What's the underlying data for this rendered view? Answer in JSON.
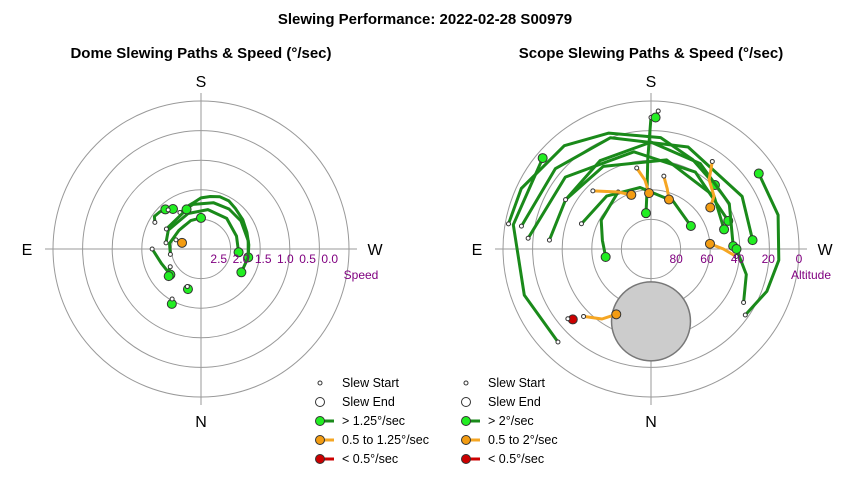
{
  "title": "Slewing Performance: 2022-02-28 S00979",
  "colors": {
    "fast": "#1a8a1a",
    "fast_marker": "#22ee22",
    "medium": "#f5a623",
    "medium_marker": "#f39c12",
    "slow": "#cc0000",
    "grid": "#999999",
    "axis_tick": "#800080",
    "obscured": "#cccccc"
  },
  "chart_data": [
    {
      "type": "polar-paths",
      "title": "Dome Slewing Paths & Speed (°/sec)",
      "directions": {
        "top": "S",
        "bottom": "N",
        "left": "E",
        "right": "W"
      },
      "radial_axis_label": "Speed",
      "radial_ticks": [
        "2.5",
        "2.0",
        "1.5",
        "1.0",
        "0.5",
        "0.0"
      ],
      "radial_range": [
        0.0,
        2.5
      ],
      "radial_reversed": true,
      "legend": [
        {
          "label": "Slew Start",
          "marker": "start"
        },
        {
          "label": "Slew End",
          "marker": "end"
        },
        {
          "label": "> 1.25°/sec",
          "marker": "fast"
        },
        {
          "label": "0.5 to 1.25°/sec",
          "marker": "medium"
        },
        {
          "label": "< 0.5°/sec",
          "marker": "slow"
        }
      ],
      "paths": [
        {
          "speed_class": "medium",
          "points": [
            [
              -70,
              2.3
            ],
            [
              -72,
              2.45
            ]
          ]
        },
        {
          "speed_class": "fast",
          "points": [
            [
              -60,
              1.7
            ],
            [
              -55,
              1.62
            ],
            [
              -48,
              1.65
            ],
            [
              -42,
              1.7
            ]
          ]
        },
        {
          "speed_class": "fast",
          "points": [
            [
              -40,
              1.75
            ],
            [
              -35,
              1.8
            ]
          ]
        },
        {
          "speed_class": "fast",
          "points": [
            [
              -20,
              1.9
            ],
            [
              -10,
              1.85
            ],
            [
              0,
              1.75
            ],
            [
              10,
              1.7
            ],
            [
              20,
              1.65
            ],
            [
              30,
              1.65
            ],
            [
              40,
              1.7
            ],
            [
              55,
              1.75
            ],
            [
              70,
              1.8
            ],
            [
              85,
              1.82
            ],
            [
              100,
              1.82
            ]
          ]
        },
        {
          "speed_class": "fast",
          "points": [
            [
              -30,
              1.95
            ],
            [
              -10,
              1.88
            ],
            [
              15,
              1.82
            ],
            [
              35,
              1.8
            ],
            [
              55,
              1.8
            ],
            [
              80,
              1.82
            ],
            [
              100,
              1.82
            ],
            [
              120,
              1.85
            ]
          ]
        },
        {
          "speed_class": "fast",
          "points": [
            [
              -80,
              2.1
            ],
            [
              -60,
              2.05
            ],
            [
              -20,
              2.05
            ],
            [
              10,
              2.0
            ],
            [
              40,
              2.0
            ],
            [
              70,
              2.05
            ],
            [
              95,
              2.05
            ]
          ]
        },
        {
          "speed_class": "fast",
          "points": [
            [
              -100,
              2.2
            ],
            [
              -80,
              2.18
            ],
            [
              -50,
              2.25
            ],
            [
              -20,
              2.22
            ],
            [
              0,
              2.2
            ]
          ]
        },
        {
          "speed_class": "fast",
          "points": [
            [
              -90,
              1.8
            ],
            [
              -110,
              1.95
            ],
            [
              -130,
              2.0
            ]
          ]
        },
        {
          "speed_class": "fast",
          "points": [
            [
              -120,
              2.1
            ],
            [
              -125,
              2.0
            ],
            [
              -130,
              1.95
            ]
          ]
        },
        {
          "speed_class": "fast",
          "points": [
            [
              -150,
              1.6
            ],
            [
              -152,
              1.5
            ]
          ]
        },
        {
          "speed_class": "fast",
          "points": [
            [
              -160,
              2.0
            ],
            [
              -162,
              1.95
            ]
          ]
        },
        {
          "speed_class": "fast",
          "points": [
            [
              -60,
              2.0
            ],
            [
              -20,
              1.95
            ]
          ]
        }
      ]
    },
    {
      "type": "polar-paths",
      "title": "Scope Slewing Paths & Speed (°/sec)",
      "directions": {
        "top": "S",
        "bottom": "N",
        "left": "E",
        "right": "W"
      },
      "radial_axis_label": "Altitude",
      "radial_ticks": [
        "80",
        "60",
        "40",
        "20",
        "0"
      ],
      "radial_range": [
        90,
        0
      ],
      "radial_reversed": true,
      "legend": [
        {
          "label": "Slew Start",
          "marker": "start"
        },
        {
          "label": "Slew End",
          "marker": "end"
        },
        {
          "label": "> 2°/sec",
          "marker": "fast"
        },
        {
          "label": "0.5 to 2°/sec",
          "marker": "medium"
        },
        {
          "label": "< 0.5°/sec",
          "marker": "slow"
        }
      ],
      "obscured_region": {
        "center_azimuth": 0,
        "center_altitude": 46,
        "radius_deg": 24
      },
      "paths": [
        {
          "speed_class": "fast",
          "points": [
            [
              180,
              10
            ],
            [
              178,
              35
            ],
            [
              176,
              55
            ],
            [
              172,
              68
            ]
          ]
        },
        {
          "speed_class": "fast",
          "points": [
            [
              183,
              6
            ],
            [
              182,
              10
            ]
          ]
        },
        {
          "speed_class": "fast",
          "points": [
            [
              100,
              2
            ],
            [
              115,
              3
            ],
            [
              140,
              8
            ],
            [
              160,
              15
            ],
            [
              185,
              22
            ],
            [
              205,
              30
            ],
            [
              225,
              35
            ]
          ]
        },
        {
          "speed_class": "fast",
          "points": [
            [
              100,
              10
            ],
            [
              130,
              14
            ],
            [
              160,
              18
            ],
            [
              200,
              24
            ],
            [
              240,
              26
            ],
            [
              265,
              28
            ]
          ]
        },
        {
          "speed_class": "fast",
          "points": [
            [
              95,
              15
            ],
            [
              130,
              22
            ],
            [
              170,
              30
            ],
            [
              210,
              36
            ],
            [
              250,
              40
            ]
          ]
        },
        {
          "speed_class": "fast",
          "points": [
            [
              95,
              28
            ],
            [
              120,
              30
            ],
            [
              150,
              32
            ],
            [
              190,
              35
            ],
            [
              230,
              40
            ],
            [
              255,
              44
            ]
          ]
        },
        {
          "speed_class": "fast",
          "points": [
            [
              110,
              45
            ],
            [
              140,
              48
            ],
            [
              170,
              52
            ],
            [
              205,
              58
            ],
            [
              240,
              62
            ]
          ]
        },
        {
          "speed_class": "fast",
          "points": [
            [
              120,
              30
            ],
            [
              150,
              28
            ],
            [
              180,
              25
            ],
            [
              210,
              30
            ],
            [
              240,
              35
            ],
            [
              268,
              40
            ]
          ]
        },
        {
          "speed_class": "fast",
          "points": [
            [
              45,
              10
            ],
            [
              70,
              8
            ],
            [
              100,
              5
            ],
            [
              130,
              4
            ]
          ]
        },
        {
          "speed_class": "fast",
          "points": [
            [
              300,
              25
            ],
            [
              285,
              30
            ],
            [
              270,
              38
            ]
          ]
        },
        {
          "speed_class": "fast",
          "points": [
            [
              305,
              20
            ],
            [
              290,
              15
            ],
            [
              275,
              12
            ],
            [
              255,
              10
            ],
            [
              235,
              10
            ]
          ]
        },
        {
          "speed_class": "fast",
          "points": [
            [
              150,
              50
            ],
            [
              120,
              55
            ],
            [
              100,
              60
            ],
            [
              80,
              62
            ]
          ]
        },
        {
          "speed_class": "medium",
          "points": [
            [
              215,
              25
            ],
            [
              220,
              35
            ],
            [
              230,
              40
            ],
            [
              235,
              46
            ]
          ]
        },
        {
          "speed_class": "medium",
          "points": [
            [
              135,
              40
            ],
            [
              150,
              50
            ],
            [
              160,
              55
            ]
          ]
        },
        {
          "speed_class": "medium",
          "points": [
            [
              190,
              45
            ],
            [
              195,
              52
            ],
            [
              200,
              58
            ]
          ]
        },
        {
          "speed_class": "medium",
          "points": [
            [
              45,
              32
            ],
            [
              35,
              38
            ],
            [
              28,
              45
            ]
          ]
        },
        {
          "speed_class": "medium",
          "points": [
            [
              275,
              38
            ],
            [
              270,
              46
            ],
            [
              265,
              54
            ]
          ]
        },
        {
          "speed_class": "medium",
          "points": [
            [
              170,
              40
            ],
            [
              175,
              48
            ],
            [
              178,
              56
            ]
          ]
        },
        {
          "speed_class": "slow",
          "points": [
            [
              50,
              24
            ],
            [
              48,
              26
            ]
          ]
        }
      ]
    }
  ]
}
